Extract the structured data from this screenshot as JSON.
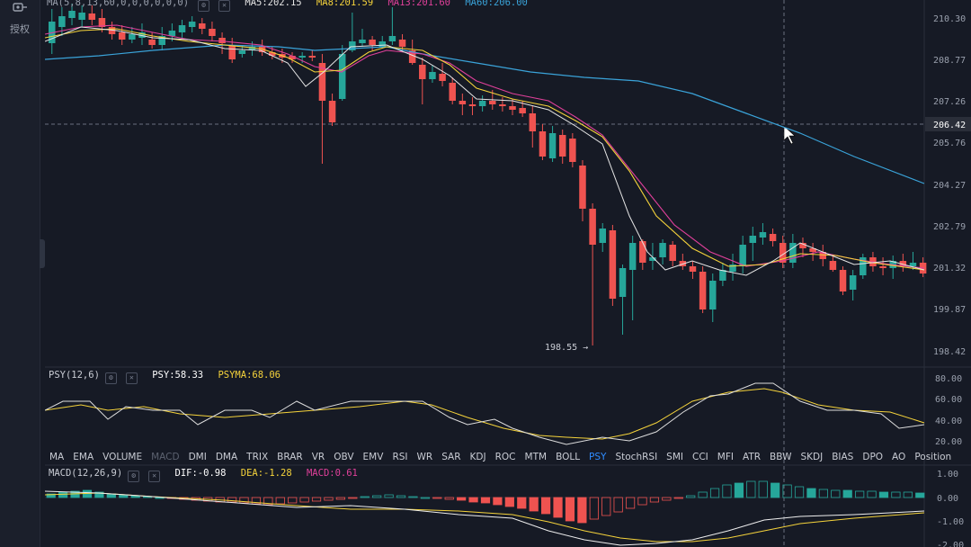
{
  "sidebar": {
    "auth_label": "授权"
  },
  "main_legend": {
    "ma": "MA(5,8,13,60,0,0,0,0,0,0)",
    "ma5": "MA5:202.15",
    "ma8": "MA8:201.59",
    "ma13": "MA13:201.60",
    "ma60": "MA60:206.00"
  },
  "psy_legend": {
    "name": "PSY(12,6)",
    "psy": "PSY:58.33",
    "psyma": "PSYMA:68.06"
  },
  "macd_legend": {
    "name": "MACD(12,26,9)",
    "dif": "DIF:-0.98",
    "dea": "DEA:-1.28",
    "macd": "MACD:0.61"
  },
  "crosshair_price": "206.42",
  "low_marker": "198.55 →",
  "price_ticks": [
    "210.30",
    "208.77",
    "207.26",
    "205.76",
    "204.27",
    "202.79",
    "201.32",
    "199.87",
    "198.42"
  ],
  "psy_ticks": [
    "80.00",
    "60.00",
    "40.00",
    "20.00"
  ],
  "macd_ticks": [
    "1.00",
    "0.00",
    "-1.00",
    "-2.00"
  ],
  "tabs": [
    "MA",
    "EMA",
    "VOLUME",
    "MACD",
    "DMI",
    "DMA",
    "TRIX",
    "BRAR",
    "VR",
    "OBV",
    "EMV",
    "RSI",
    "WR",
    "SAR",
    "KDJ",
    "ROC",
    "MTM",
    "BOLL",
    "PSY",
    "StochRSI",
    "SMI",
    "CCI",
    "MFI",
    "ATR",
    "BBW",
    "SKDJ",
    "BIAS",
    "DPO",
    "AO",
    "Position"
  ],
  "colors": {
    "up": "#26a69a",
    "down": "#ef5350",
    "ma5": "#e6e6e6",
    "ma8": "#f5d33b",
    "ma13": "#e0409a",
    "ma60": "#3aa3d9",
    "active_tab": "#2f8cff"
  }
}
